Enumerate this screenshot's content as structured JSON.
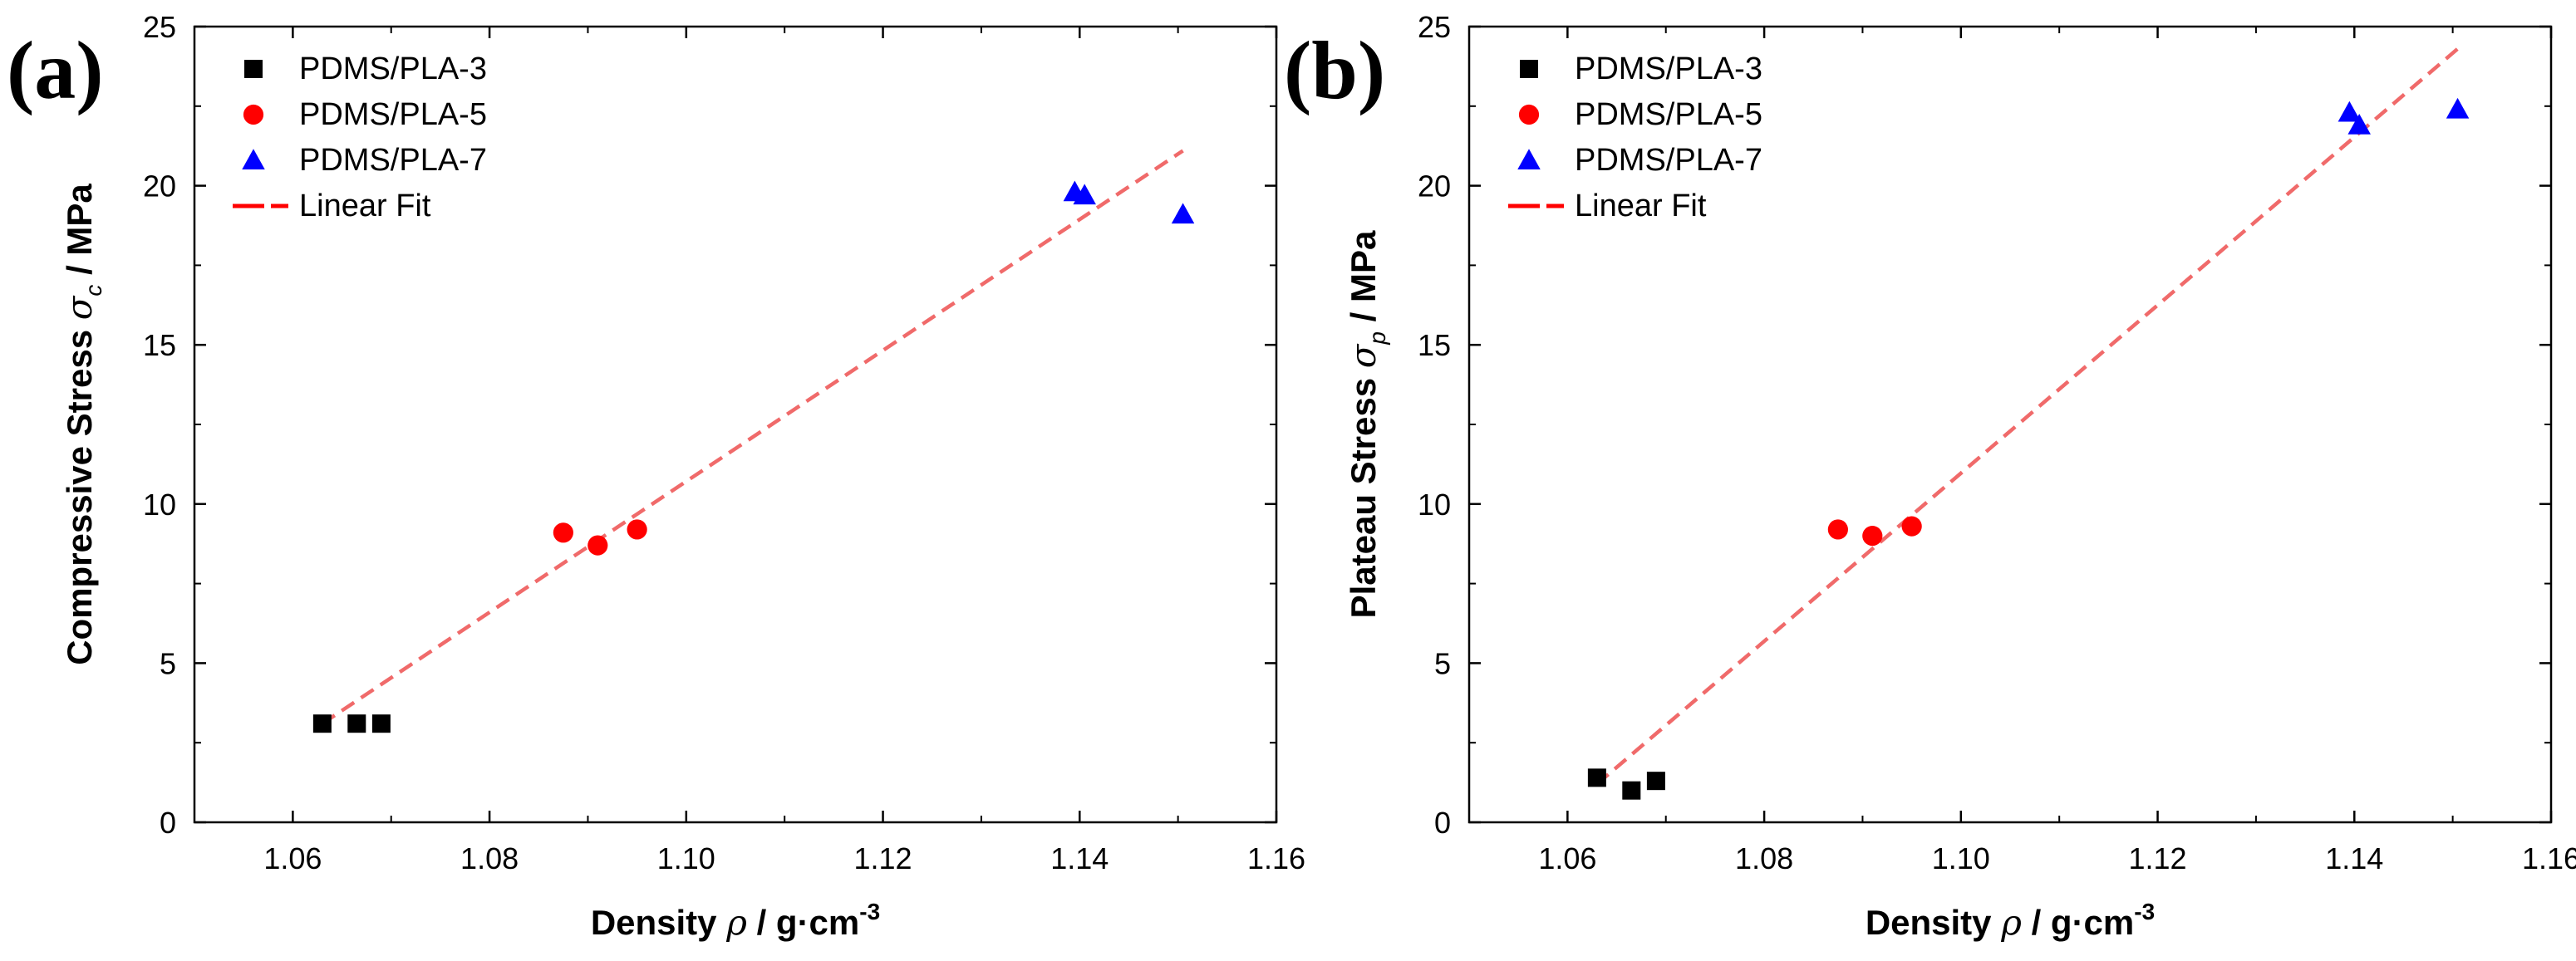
{
  "chart_data": [
    {
      "type": "scatter",
      "panel_label": "(a)",
      "xlabel": {
        "text": "Density ",
        "symbol": "ρ",
        "rest": " / g·cm",
        "sup": "-3"
      },
      "ylabel": {
        "text": "Compressive Stress ",
        "symbol": "σ",
        "sub": "c",
        "rest": " / MPa"
      },
      "xlim": [
        1.05,
        1.16
      ],
      "ylim": [
        0,
        25
      ],
      "xticks": [
        1.06,
        1.08,
        1.1,
        1.12,
        1.14,
        1.16
      ],
      "yticks": [
        0,
        5,
        10,
        15,
        20,
        25
      ],
      "xtick_labels": [
        "1.06",
        "1.08",
        "1.10",
        "1.12",
        "1.14",
        "1.16"
      ],
      "ytick_labels": [
        "0",
        "5",
        "10",
        "15",
        "20",
        "25"
      ],
      "grid": false,
      "legend_position": "top-left",
      "series": [
        {
          "name": "PDMS/PLA-3",
          "marker": "square",
          "color": "#000000",
          "x": [
            1.063,
            1.0665,
            1.069
          ],
          "y": [
            3.1,
            3.1,
            3.1
          ]
        },
        {
          "name": "PDMS/PLA-5",
          "marker": "circle",
          "color": "#ff0000",
          "x": [
            1.0875,
            1.091,
            1.095
          ],
          "y": [
            9.1,
            8.7,
            9.2
          ]
        },
        {
          "name": "PDMS/PLA-7",
          "marker": "triangle",
          "color": "#0000ff",
          "x": [
            1.1395,
            1.1405,
            1.1505
          ],
          "y": [
            19.8,
            19.7,
            19.1
          ]
        }
      ],
      "fit": {
        "name": "Linear Fit",
        "color": "#ff0000",
        "x": [
          1.063,
          1.1505
        ],
        "y": [
          3.1,
          21.1
        ]
      }
    },
    {
      "type": "scatter",
      "panel_label": "(b)",
      "xlabel": {
        "text": "Density ",
        "symbol": "ρ",
        "rest": " / g·cm",
        "sup": "-3"
      },
      "ylabel": {
        "text": "Plateau Stress ",
        "symbol": "σ",
        "sub": "p",
        "rest": " / MPa"
      },
      "xlim": [
        1.05,
        1.16
      ],
      "ylim": [
        0,
        25
      ],
      "xticks": [
        1.06,
        1.08,
        1.1,
        1.12,
        1.14,
        1.16
      ],
      "yticks": [
        0,
        5,
        10,
        15,
        20,
        25
      ],
      "xtick_labels": [
        "1.06",
        "1.08",
        "1.10",
        "1.12",
        "1.14",
        "1.16"
      ],
      "ytick_labels": [
        "0",
        "5",
        "10",
        "15",
        "20",
        "25"
      ],
      "grid": false,
      "legend_position": "top-left",
      "series": [
        {
          "name": "PDMS/PLA-3",
          "marker": "square",
          "color": "#000000",
          "x": [
            1.063,
            1.0665,
            1.069
          ],
          "y": [
            1.4,
            1.0,
            1.3
          ]
        },
        {
          "name": "PDMS/PLA-5",
          "marker": "circle",
          "color": "#ff0000",
          "x": [
            1.0875,
            1.091,
            1.095
          ],
          "y": [
            9.2,
            9.0,
            9.3
          ]
        },
        {
          "name": "PDMS/PLA-7",
          "marker": "triangle",
          "color": "#0000ff",
          "x": [
            1.1395,
            1.1405,
            1.1505
          ],
          "y": [
            22.3,
            21.9,
            22.4
          ]
        }
      ],
      "fit": {
        "name": "Linear Fit",
        "color": "#ff0000",
        "x": [
          1.063,
          1.1505
        ],
        "y": [
          1.2,
          24.3
        ]
      }
    }
  ]
}
